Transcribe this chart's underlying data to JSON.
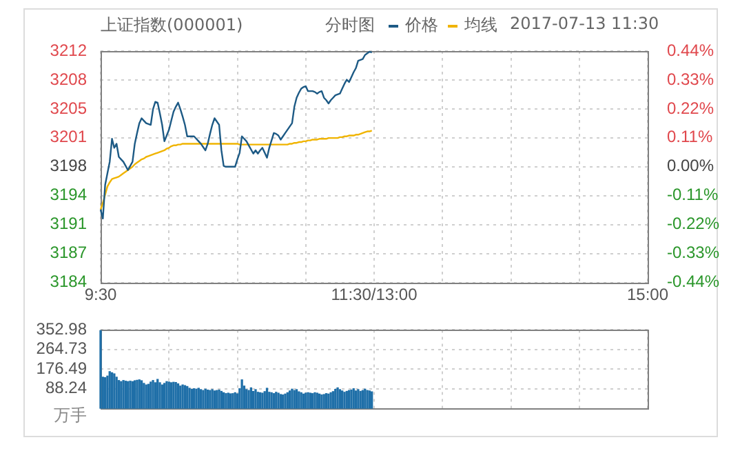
{
  "chart_data": [
    {
      "type": "line",
      "title": "上证指数(000001)",
      "subtitle": "分时图",
      "annotations": [
        "2017-07-13 11:30"
      ],
      "legend": "top right",
      "grid": true,
      "marker": "none",
      "categories": [
        "9:30",
        null,
        null,
        null,
        null,
        null,
        null,
        null,
        null,
        null,
        null,
        null,
        null,
        null,
        null,
        null,
        null,
        null,
        null,
        null,
        null,
        null,
        null,
        null,
        null,
        null,
        null,
        null,
        null,
        null,
        null,
        null,
        null,
        null,
        null,
        null,
        null,
        null,
        null,
        null,
        null,
        null,
        null,
        null,
        null,
        null,
        null,
        null,
        null,
        null,
        null,
        null,
        null,
        null,
        null,
        null,
        null,
        null,
        null,
        null,
        null,
        null,
        null,
        null,
        null,
        null,
        null,
        null,
        null,
        null,
        null,
        null,
        null,
        null,
        null,
        null,
        null,
        null,
        null,
        null,
        null,
        null,
        null,
        null,
        null,
        null,
        null,
        null,
        null,
        null,
        null,
        null,
        null,
        null,
        null,
        null,
        null,
        null,
        null,
        null,
        null,
        null,
        null,
        null,
        null,
        null,
        null,
        null,
        null,
        null,
        null,
        null,
        null,
        null,
        null,
        null,
        null,
        null,
        null,
        null,
        "11:30/13:00",
        null,
        null,
        null,
        null,
        null,
        null,
        null,
        null,
        null,
        null,
        null,
        null,
        null,
        null,
        null,
        null,
        null,
        null,
        null,
        null,
        null,
        null,
        null,
        null,
        null,
        null,
        null,
        null,
        null,
        null,
        null,
        null,
        null,
        null,
        null,
        null,
        null,
        null,
        null,
        null,
        null,
        null,
        null,
        null,
        null,
        null,
        null,
        null,
        null,
        null,
        null,
        null,
        null,
        null,
        null,
        null,
        null,
        null,
        null,
        null,
        null,
        null,
        null,
        null,
        null,
        null,
        null,
        null,
        null,
        null,
        null,
        null,
        null,
        null,
        null,
        null,
        null,
        null,
        null,
        null,
        null,
        null,
        null,
        null,
        null,
        null,
        null,
        null,
        null,
        null,
        null,
        null,
        null,
        null,
        null,
        null,
        null,
        null,
        null,
        null,
        null,
        null,
        null,
        null,
        null,
        null,
        null,
        null,
        null,
        null,
        null,
        null,
        null,
        null,
        null,
        null,
        null,
        null,
        null,
        "15:00"
      ],
      "ylim": [
        3183.82,
        3211.98
      ],
      "yticks": [
        {
          "value": 3183.82,
          "label": "3184"
        },
        {
          "value": 3187.34,
          "label": "3187"
        },
        {
          "value": 3190.86,
          "label": "3191"
        },
        {
          "value": 3194.38,
          "label": "3194"
        },
        {
          "value": 3197.9,
          "label": "3198"
        },
        {
          "value": 3201.42,
          "label": "3201"
        },
        {
          "value": 3204.94,
          "label": "3205"
        },
        {
          "value": 3208.46,
          "label": "3208"
        },
        {
          "value": 3211.98,
          "label": "3212"
        }
      ],
      "y2lim": [
        -0.44,
        0.44
      ],
      "y2ticks": [
        {
          "value": -0.44,
          "label": "-0.44%"
        },
        {
          "value": -0.33,
          "label": "-0.33%"
        },
        {
          "value": -0.22,
          "label": "-0.22%"
        },
        {
          "value": -0.11,
          "label": "-0.11%"
        },
        {
          "value": 0,
          "label": "0.00%"
        },
        {
          "value": 0.11,
          "label": "0.11%"
        },
        {
          "value": 0.22,
          "label": "0.22%"
        },
        {
          "value": 0.33,
          "label": "0.33%"
        },
        {
          "value": 0.44,
          "label": "0.44%"
        }
      ],
      "series": [
        {
          "name": "价格",
          "color": "#1d5a85",
          "values": [
            3192.7,
            3191.6,
            3195.7,
            3197.1,
            3198.5,
            3201.3,
            3200.2,
            3200.7,
            3199.1,
            3198.8,
            3198.5,
            3198.0,
            3197.5,
            3198.0,
            3198.5,
            3200.7,
            3202.0,
            3203.2,
            3203.8,
            3203.5,
            3203.2,
            3203.1,
            3203.0,
            3204.9,
            3205.8,
            3205.7,
            3204.4,
            3203.0,
            3201.0,
            3201.7,
            3202.4,
            3203.5,
            3204.6,
            3205.2,
            3205.7,
            3204.9,
            3204.0,
            3203.0,
            3201.6,
            3201.6,
            3201.6,
            3201.6,
            3201.3,
            3201.0,
            3200.7,
            3200.3,
            3199.9,
            3200.7,
            3201.9,
            3203.0,
            3203.8,
            3203.4,
            3203.0,
            3199.9,
            3198.0,
            3197.9,
            3197.9,
            3197.9,
            3197.9,
            3197.9,
            3198.8,
            3199.6,
            3201.6,
            3201.3,
            3201.0,
            3200.5,
            3200.0,
            3199.5,
            3199.9,
            3199.5,
            3199.9,
            3200.2,
            3199.6,
            3199.0,
            3200.2,
            3201.1,
            3202.0,
            3201.9,
            3201.7,
            3201.2,
            3201.6,
            3202.0,
            3202.4,
            3202.8,
            3203.2,
            3205.2,
            3206.3,
            3206.9,
            3207.4,
            3207.6,
            3207.7,
            3207.1,
            3207.1,
            3207.1,
            3207.0,
            3206.8,
            3207.0,
            3207.1,
            3206.3,
            3206.0,
            3205.6,
            3206.0,
            3206.3,
            3206.6,
            3206.7,
            3206.8,
            3207.4,
            3208.0,
            3208.5,
            3208.2,
            3208.8,
            3209.4,
            3209.9,
            3210.8,
            3210.9,
            3211.0,
            3211.5,
            3211.7,
            3211.9,
            3211.8,
            null,
            null,
            null,
            null,
            null,
            null,
            null,
            null,
            null,
            null,
            null,
            null,
            null,
            null,
            null,
            null,
            null,
            null,
            null,
            null,
            null,
            null,
            null,
            null,
            null,
            null,
            null,
            null,
            null,
            null,
            null,
            null,
            null,
            null,
            null,
            null,
            null,
            null,
            null,
            null,
            null,
            null,
            null,
            null,
            null,
            null,
            null,
            null,
            null,
            null,
            null,
            null,
            null,
            null,
            null,
            null,
            null,
            null,
            null,
            null,
            null,
            null,
            null,
            null,
            null,
            null,
            null,
            null,
            null,
            null,
            null,
            null,
            null,
            null,
            null,
            null,
            null,
            null,
            null,
            null,
            null,
            null,
            null,
            null,
            null,
            null,
            null,
            null,
            null,
            null,
            null,
            null,
            null,
            null,
            null,
            null,
            null,
            null,
            null,
            null,
            null,
            null,
            null,
            null,
            null,
            null,
            null,
            null,
            null,
            null,
            null,
            null,
            null,
            null,
            null,
            null,
            null,
            null,
            null,
            null,
            null
          ]
        },
        {
          "name": "均线",
          "color": "#f0b400",
          "values": [
            3192.7,
            3193.5,
            3194.5,
            3195.5,
            3196.0,
            3196.4,
            3196.5,
            3196.6,
            3196.7,
            3196.9,
            3197.1,
            3197.3,
            3197.5,
            3197.7,
            3197.9,
            3198.2,
            3198.4,
            3198.6,
            3198.8,
            3198.9,
            3199.1,
            3199.2,
            3199.3,
            3199.4,
            3199.5,
            3199.6,
            3199.7,
            3199.8,
            3199.9,
            3200.1,
            3200.2,
            3200.4,
            3200.5,
            3200.5,
            3200.6,
            3200.6,
            3200.7,
            3200.7,
            3200.7,
            3200.7,
            3200.7,
            3200.7,
            3200.7,
            3200.7,
            3200.7,
            3200.7,
            3200.7,
            3200.7,
            3200.7,
            3200.7,
            3200.7,
            3200.7,
            3200.7,
            3200.7,
            3200.7,
            3200.7,
            3200.7,
            3200.7,
            3200.7,
            3200.7,
            3200.7,
            3200.6,
            3200.6,
            3200.6,
            3200.6,
            3200.6,
            3200.6,
            3200.6,
            3200.6,
            3200.6,
            3200.6,
            3200.6,
            3200.6,
            3200.6,
            3200.6,
            3200.6,
            3200.6,
            3200.6,
            3200.6,
            3200.6,
            3200.6,
            3200.6,
            3200.6,
            3200.7,
            3200.7,
            3200.8,
            3200.8,
            3200.9,
            3200.9,
            3201.0,
            3201.0,
            3201.1,
            3201.1,
            3201.2,
            3201.2,
            3201.2,
            3201.3,
            3201.3,
            3201.3,
            3201.3,
            3201.4,
            3201.4,
            3201.4,
            3201.4,
            3201.4,
            3201.5,
            3201.5,
            3201.6,
            3201.6,
            3201.7,
            3201.7,
            3201.7,
            3201.8,
            3201.8,
            3201.9,
            3202.0,
            3202.1,
            3202.2,
            3202.2,
            3202.3,
            null,
            null,
            null,
            null,
            null,
            null,
            null,
            null,
            null,
            null,
            null,
            null,
            null,
            null,
            null,
            null,
            null,
            null,
            null,
            null,
            null,
            null,
            null,
            null,
            null,
            null,
            null,
            null,
            null,
            null,
            null,
            null,
            null,
            null,
            null,
            null,
            null,
            null,
            null,
            null,
            null,
            null,
            null,
            null,
            null,
            null,
            null,
            null,
            null,
            null,
            null,
            null,
            null,
            null,
            null,
            null,
            null,
            null,
            null,
            null,
            null,
            null,
            null,
            null,
            null,
            null,
            null,
            null,
            null,
            null,
            null,
            null,
            null,
            null,
            null,
            null,
            null,
            null,
            null,
            null,
            null,
            null,
            null,
            null,
            null,
            null,
            null,
            null,
            null,
            null,
            null,
            null,
            null,
            null,
            null,
            null,
            null,
            null,
            null,
            null,
            null,
            null,
            null,
            null,
            null,
            null,
            null,
            null,
            null,
            null,
            null,
            null,
            null,
            null,
            null,
            null,
            null,
            null,
            null,
            null,
            null
          ]
        }
      ]
    },
    {
      "type": "bar",
      "ylabel": "万手",
      "grid": true,
      "tick_labels": "y",
      "color": "#1f6fa8",
      "categories": [
        null,
        null,
        null,
        null,
        null,
        null,
        null,
        null,
        null,
        null,
        null,
        null,
        null,
        null,
        null,
        null,
        null,
        null,
        null,
        null,
        null,
        null,
        null,
        null,
        null,
        null,
        null,
        null,
        null,
        null,
        null,
        null,
        null,
        null,
        null,
        null,
        null,
        null,
        null,
        null,
        null,
        null,
        null,
        null,
        null,
        null,
        null,
        null,
        null,
        null,
        null,
        null,
        null,
        null,
        null,
        null,
        null,
        null,
        null,
        null,
        null,
        null,
        null,
        null,
        null,
        null,
        null,
        null,
        null,
        null,
        null,
        null,
        null,
        null,
        null,
        null,
        null,
        null,
        null,
        null,
        null,
        null,
        null,
        null,
        null,
        null,
        null,
        null,
        null,
        null,
        null,
        null,
        null,
        null,
        null,
        null,
        null,
        null,
        null,
        null,
        null,
        null,
        null,
        null,
        null,
        null,
        null,
        null,
        null,
        null,
        null,
        null,
        null,
        null,
        null,
        null,
        null,
        null,
        null,
        null,
        null,
        null,
        null,
        null,
        null,
        null,
        null,
        null,
        null,
        null,
        null,
        null,
        null,
        null,
        null,
        null,
        null,
        null,
        null,
        null,
        null,
        null,
        null,
        null,
        null,
        null,
        null,
        null,
        null,
        null,
        null,
        null,
        null,
        null,
        null,
        null,
        null,
        null,
        null,
        null,
        null,
        null,
        null,
        null,
        null,
        null,
        null,
        null,
        null,
        null,
        null,
        null,
        null,
        null,
        null,
        null,
        null,
        null,
        null,
        null,
        null,
        null,
        null,
        null,
        null,
        null,
        null,
        null,
        null,
        null,
        null,
        null,
        null,
        null,
        null,
        null,
        null,
        null,
        null,
        null,
        null,
        null,
        null,
        null,
        null,
        null,
        null,
        null,
        null,
        null,
        null,
        null,
        null,
        null,
        null,
        null,
        null,
        null,
        null,
        null,
        null,
        null,
        null,
        null,
        null,
        null,
        null,
        null,
        null,
        null,
        null,
        null,
        null,
        null,
        null,
        null,
        null,
        null,
        null,
        null,
        null
      ],
      "ylim": [
        0,
        352.98
      ],
      "yticks": [
        88.24,
        176.49,
        264.73,
        352.98
      ],
      "values": [
        350,
        140,
        138,
        145,
        165,
        160,
        155,
        140,
        125,
        120,
        125,
        122,
        120,
        122,
        120,
        124,
        126,
        128,
        124,
        112,
        105,
        108,
        118,
        125,
        115,
        130,
        115,
        105,
        112,
        120,
        118,
        115,
        117,
        116,
        110,
        100,
        105,
        102,
        98,
        90,
        85,
        88,
        86,
        90,
        84,
        80,
        86,
        82,
        80,
        84,
        78,
        80,
        82,
        76,
        70,
        66,
        68,
        65,
        66,
        70,
        65,
        88,
        128,
        100,
        84,
        80,
        92,
        76,
        84,
        72,
        70,
        68,
        75,
        90,
        72,
        70,
        66,
        72,
        68,
        62,
        60,
        64,
        70,
        78,
        86,
        80,
        84,
        74,
        70,
        64,
        68,
        70,
        68,
        66,
        70,
        68,
        64,
        60,
        62,
        66,
        64,
        70,
        75,
        85,
        92,
        84,
        78,
        72,
        76,
        80,
        82,
        88,
        78,
        84,
        76,
        80,
        86,
        80,
        78,
        74,
        null,
        null,
        null,
        null,
        null,
        null,
        null,
        null,
        null,
        null,
        null,
        null,
        null,
        null,
        null,
        null,
        null,
        null,
        null,
        null,
        null,
        null,
        null,
        null,
        null,
        null,
        null,
        null,
        null,
        null,
        null,
        null,
        null,
        null,
        null,
        null,
        null,
        null,
        null,
        null,
        null,
        null,
        null,
        null,
        null,
        null,
        null,
        null,
        null,
        null,
        null,
        null,
        null,
        null,
        null,
        null,
        null,
        null,
        null,
        null,
        null,
        null,
        null,
        null,
        null,
        null,
        null,
        null,
        null,
        null,
        null,
        null,
        null,
        null,
        null,
        null,
        null,
        null,
        null,
        null,
        null,
        null,
        null,
        null,
        null,
        null,
        null,
        null,
        null,
        null,
        null,
        null,
        null,
        null,
        null,
        null,
        null,
        null,
        null,
        null,
        null,
        null,
        null,
        null,
        null,
        null,
        null,
        null,
        null,
        null,
        null,
        null,
        null,
        null,
        null,
        null,
        null,
        null,
        null,
        null,
        null
      ]
    }
  ]
}
